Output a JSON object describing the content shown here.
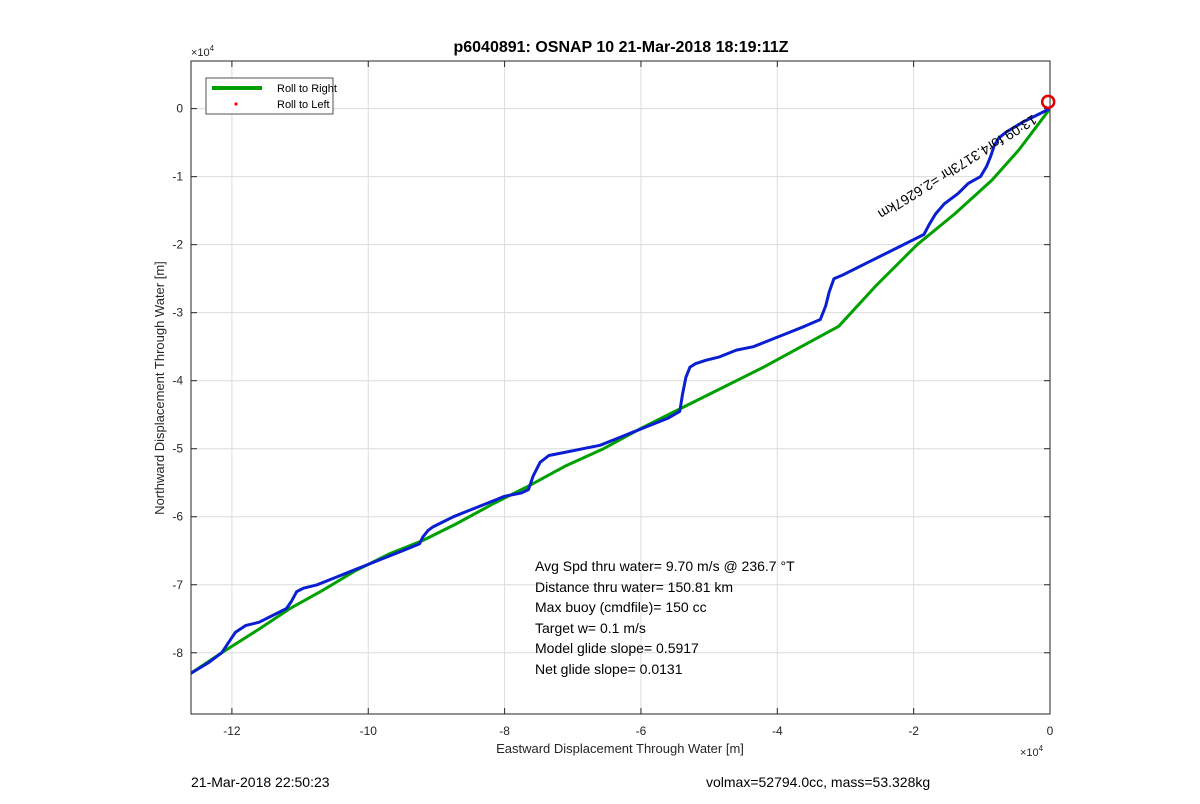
{
  "chart_data": {
    "type": "line",
    "title": "p6040891: OSNAP 10 21-Mar-2018 18:19:11Z",
    "xlabel": "Eastward Displacement Through Water [m]",
    "ylabel": "Northward Displacement Through Water [m]",
    "x_exponent_base": "×10",
    "x_exponent_power": "4",
    "y_exponent_base": "×10",
    "y_exponent_power": "4",
    "xlim": [
      -126000,
      0
    ],
    "ylim": [
      -89000,
      7000
    ],
    "xticks": [
      -120000,
      -100000,
      -80000,
      -60000,
      -40000,
      -20000,
      0
    ],
    "xtick_labels": [
      "-12",
      "-10",
      "-8",
      "-6",
      "-4",
      "-2",
      "0"
    ],
    "yticks": [
      0,
      -10000,
      -20000,
      -30000,
      -40000,
      -50000,
      -60000,
      -70000,
      -80000
    ],
    "ytick_labels": [
      "0",
      "-1",
      "-2",
      "-3",
      "-4",
      "-5",
      "-6",
      "-7",
      "-8"
    ],
    "grid": true,
    "legend": {
      "placement": "top-left",
      "entries": [
        {
          "label": "Roll to Right",
          "color": "#00a000",
          "marker": "line"
        },
        {
          "label": "Roll to Left",
          "color": "#ff0000",
          "marker": "dot"
        }
      ]
    },
    "series": [
      {
        "color": "#00a000",
        "x": [
          -126000,
          -121500,
          -116000,
          -111500,
          -107000,
          -102000,
          -97000,
          -92000,
          -87000,
          -81500,
          -76500,
          -71000,
          -65500,
          -60000,
          -54000,
          -48000,
          -42000,
          -36500,
          -31000,
          -25500,
          -19500,
          -14000,
          -8500,
          -4500,
          0
        ],
        "y": [
          -83000,
          -80000,
          -76500,
          -73500,
          -71000,
          -68000,
          -65500,
          -63500,
          -61000,
          -58000,
          -55500,
          -52500,
          -50000,
          -47000,
          -44000,
          -41000,
          -38000,
          -35000,
          -32000,
          -26000,
          -20000,
          -15500,
          -10500,
          -6000,
          0
        ]
      },
      {
        "color": "#0a1fd0",
        "x": [
          -126000,
          -123500,
          -121500,
          -120500,
          -119500,
          -118000,
          -116000,
          -114000,
          -112000,
          -111300,
          -110500,
          -109500,
          -107500,
          -105000,
          -102500,
          -100000,
          -97500,
          -95000,
          -92500,
          -92000,
          -91200,
          -90500,
          -89500,
          -87500,
          -85000,
          -82500,
          -80000,
          -77500,
          -76500,
          -75800,
          -74800,
          -73500,
          -71000,
          -68500,
          -66000,
          -63500,
          -61000,
          -58500,
          -56000,
          -54300,
          -53900,
          -53400,
          -52800,
          -52000,
          -50500,
          -48500,
          -46000,
          -43500,
          -41000,
          -38500,
          -36000,
          -33700,
          -32900,
          -32400,
          -31700,
          -30500,
          -28500,
          -26500,
          -24500,
          -22500,
          -20500,
          -18500,
          -17700,
          -16800,
          -15500,
          -13500,
          -12000,
          -10200,
          -9300,
          -8700,
          -8200,
          -7500,
          -6500,
          -5000,
          -4000,
          -3000,
          -2000,
          -1000,
          0
        ],
        "y": [
          -83000,
          -81500,
          -80000,
          -78500,
          -77000,
          -76000,
          -75500,
          -74500,
          -73500,
          -72500,
          -71000,
          -70500,
          -70000,
          -69000,
          -68000,
          -67000,
          -66000,
          -65000,
          -64000,
          -63000,
          -62000,
          -61500,
          -61000,
          -60000,
          -59000,
          -58000,
          -57000,
          -56500,
          -56000,
          -54000,
          -52000,
          -51000,
          -50500,
          -50000,
          -49500,
          -48500,
          -47500,
          -46500,
          -45500,
          -44500,
          -42000,
          -39500,
          -38000,
          -37500,
          -37000,
          -36500,
          -35500,
          -35000,
          -34000,
          -33000,
          -32000,
          -31000,
          -29000,
          -27000,
          -25000,
          -24500,
          -23500,
          -22500,
          -21500,
          -20500,
          -19500,
          -18500,
          -17000,
          -15500,
          -14000,
          -12500,
          -11000,
          -10000,
          -8500,
          -7000,
          -5500,
          -4300,
          -3500,
          -2600,
          -2000,
          -1500,
          -1000,
          -500,
          0
        ]
      }
    ],
    "end_marker": {
      "x": 1200,
      "y": 1000,
      "color": "#e00000"
    },
    "annotations": [
      {
        "x": -2500,
        "y": -800,
        "text": "13:09 for4.3173hr =2.6267km",
        "rotation": 148,
        "color": "#000000"
      }
    ],
    "stats": [
      "Avg Spd thru water=  9.70 m/s @ 236.7 °T",
      "Distance thru water= 150.81 km",
      "Max buoy (cmdfile)= 150 cc",
      "Target w= 0.1 m/s",
      "Model glide slope= 0.5917",
      "Net glide slope= 0.0131"
    ]
  },
  "footer": {
    "left": "21-Mar-2018 22:50:23",
    "right": "volmax=52794.0cc, mass=53.328kg"
  }
}
